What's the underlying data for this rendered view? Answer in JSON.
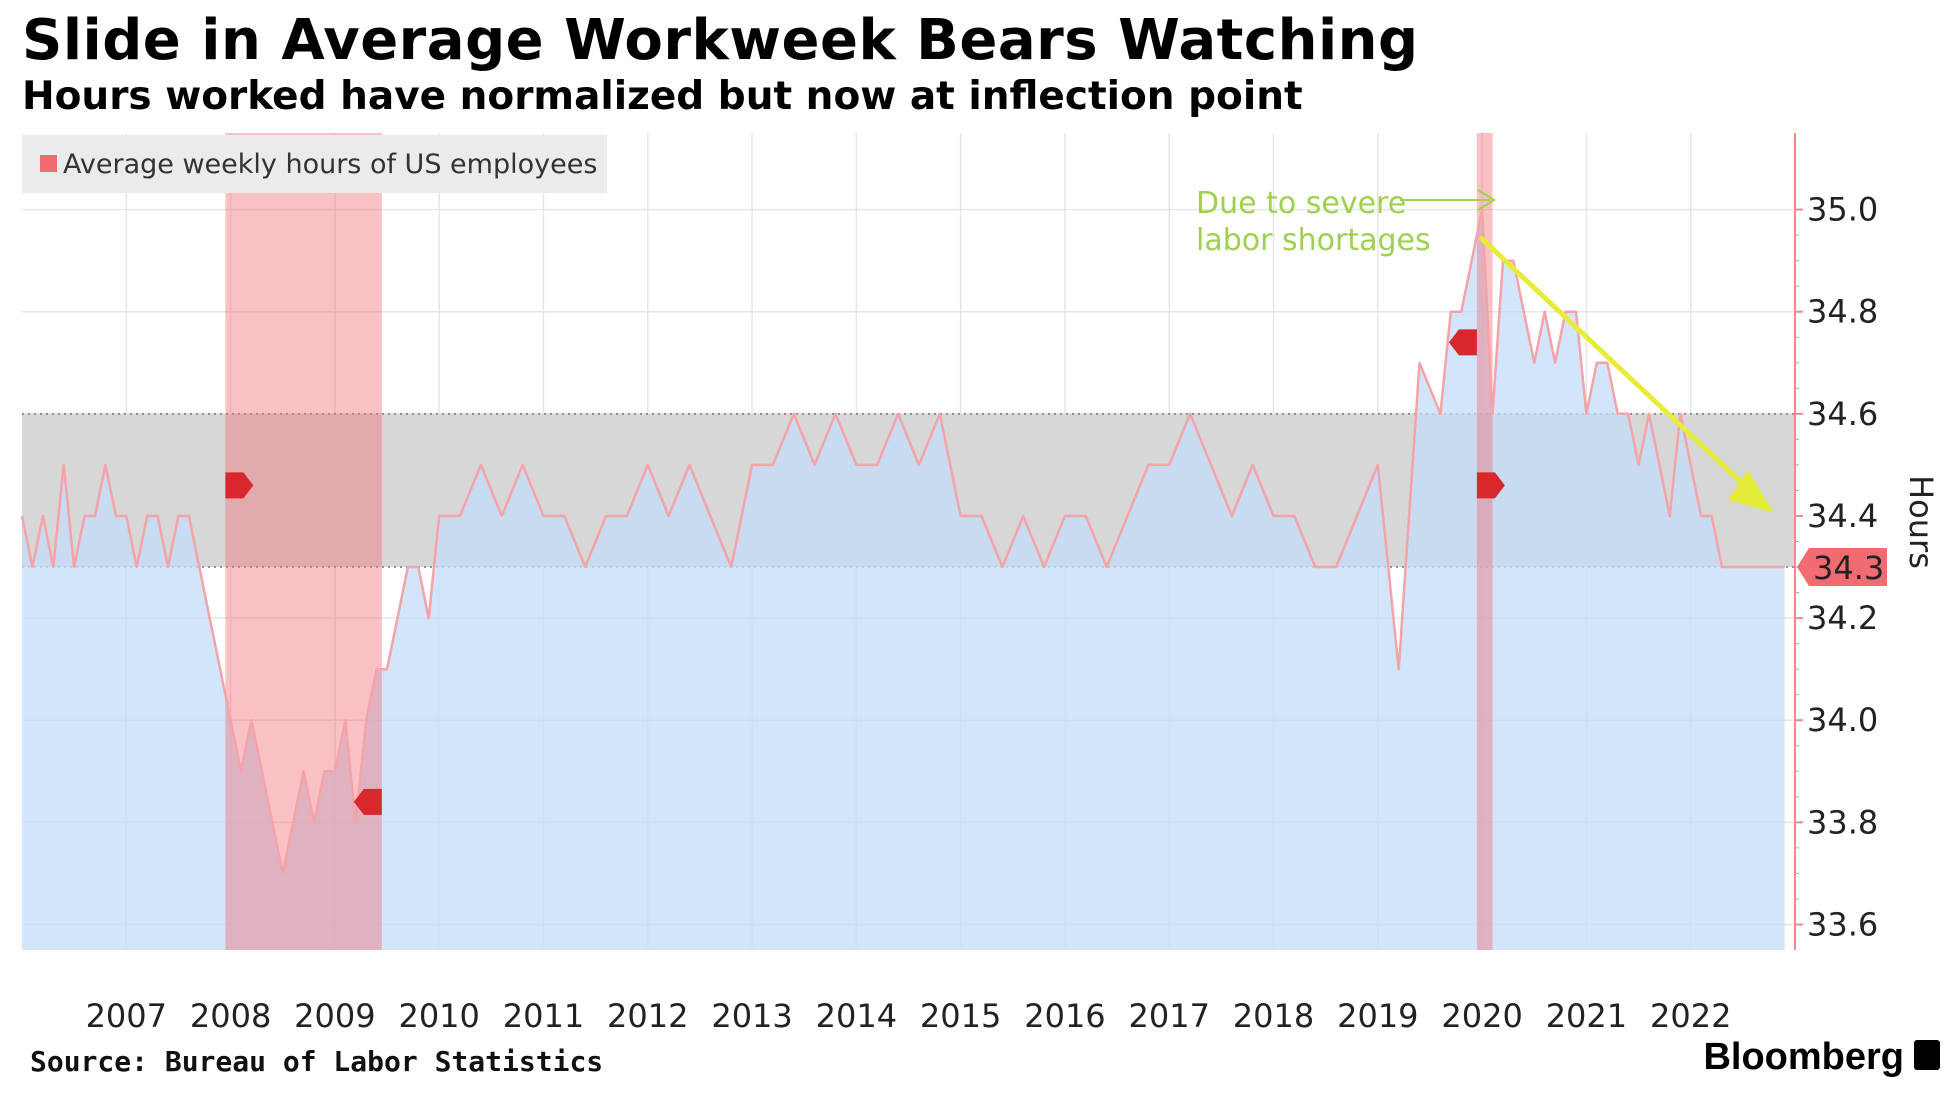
{
  "header": {
    "title": "Slide in Average Workweek Bears Watching",
    "subtitle": "Hours worked have normalized but now at inflection point"
  },
  "footer": {
    "source": "Source: Bureau of Labor Statistics",
    "brand": "Bloomberg"
  },
  "chart_data": {
    "type": "area",
    "title": "Slide in Average Workweek Bears Watching",
    "subtitle": "Hours worked have normalized but now at inflection point",
    "ylabel": "Hours",
    "xlabel": "",
    "ylim": [
      33.55,
      35.15
    ],
    "yticks": [
      33.6,
      33.8,
      34.0,
      34.2,
      34.4,
      34.6,
      34.8,
      35.0
    ],
    "ytick_labels": [
      "33.6",
      "33.8",
      "34.0",
      "34.2",
      "34.4",
      "34.6",
      "34.8",
      "35.0"
    ],
    "xlim": [
      2006.0,
      2023.0
    ],
    "xticks": [
      2007,
      2008,
      2009,
      2010,
      2011,
      2012,
      2013,
      2014,
      2015,
      2016,
      2017,
      2018,
      2019,
      2020,
      2021,
      2022
    ],
    "xtick_labels": [
      "2007",
      "2008",
      "2009",
      "2010",
      "2011",
      "2012",
      "2013",
      "2014",
      "2015",
      "2016",
      "2017",
      "2018",
      "2019",
      "2020",
      "2021",
      "2022"
    ],
    "grid": true,
    "legend": {
      "position": "top-left",
      "entries": [
        "Average weekly hours of US employees"
      ]
    },
    "series": [
      {
        "name": "Average weekly hours of US employees",
        "color": "#f4a3a8",
        "fill": "#c4dcf8",
        "x": [
          2006.0,
          2006.1,
          2006.2,
          2006.3,
          2006.4,
          2006.5,
          2006.6,
          2006.7,
          2006.8,
          2006.9,
          2007.0,
          2007.1,
          2007.2,
          2007.3,
          2007.4,
          2007.5,
          2007.6,
          2007.7,
          2007.8,
          2007.9,
          2008.0,
          2008.1,
          2008.2,
          2008.3,
          2008.4,
          2008.5,
          2008.6,
          2008.7,
          2008.8,
          2008.9,
          2009.0,
          2009.1,
          2009.2,
          2009.3,
          2009.4,
          2009.5,
          2009.6,
          2009.7,
          2009.8,
          2009.9,
          2010.0,
          2010.2,
          2010.4,
          2010.6,
          2010.8,
          2011.0,
          2011.2,
          2011.4,
          2011.6,
          2011.8,
          2012.0,
          2012.2,
          2012.4,
          2012.6,
          2012.8,
          2013.0,
          2013.2,
          2013.4,
          2013.6,
          2013.8,
          2014.0,
          2014.2,
          2014.4,
          2014.6,
          2014.8,
          2015.0,
          2015.2,
          2015.4,
          2015.6,
          2015.8,
          2016.0,
          2016.2,
          2016.4,
          2016.6,
          2016.8,
          2017.0,
          2017.2,
          2017.4,
          2017.6,
          2017.8,
          2018.0,
          2018.2,
          2018.4,
          2018.6,
          2018.8,
          2019.0,
          2019.2,
          2019.4,
          2019.6,
          2019.7,
          2019.8,
          2019.9,
          2020.0,
          2020.1,
          2020.2,
          2020.3,
          2020.4,
          2020.5,
          2020.6,
          2020.7,
          2020.8,
          2020.9,
          2021.0,
          2021.1,
          2021.2,
          2021.3,
          2021.4,
          2021.5,
          2021.6,
          2021.7,
          2021.8,
          2021.9,
          2022.0,
          2022.1,
          2022.2,
          2022.3,
          2022.4,
          2022.5,
          2022.6,
          2022.7,
          2022.8,
          2022.9
        ],
        "y": [
          34.4,
          34.3,
          34.4,
          34.3,
          34.5,
          34.3,
          34.4,
          34.4,
          34.5,
          34.4,
          34.4,
          34.3,
          34.4,
          34.4,
          34.3,
          34.4,
          34.4,
          34.3,
          34.2,
          34.1,
          34.0,
          33.9,
          34.0,
          33.9,
          33.8,
          33.7,
          33.8,
          33.9,
          33.8,
          33.9,
          33.9,
          34.0,
          33.8,
          34.0,
          34.1,
          34.1,
          34.2,
          34.3,
          34.3,
          34.2,
          34.4,
          34.4,
          34.5,
          34.4,
          34.5,
          34.4,
          34.4,
          34.3,
          34.4,
          34.4,
          34.5,
          34.4,
          34.5,
          34.4,
          34.3,
          34.5,
          34.5,
          34.6,
          34.5,
          34.6,
          34.5,
          34.5,
          34.6,
          34.5,
          34.6,
          34.4,
          34.4,
          34.3,
          34.4,
          34.3,
          34.4,
          34.4,
          34.3,
          34.4,
          34.5,
          34.5,
          34.6,
          34.5,
          34.4,
          34.5,
          34.4,
          34.4,
          34.3,
          34.3,
          34.4,
          34.5,
          34.1,
          34.7,
          34.6,
          34.8,
          34.8,
          34.9,
          35.0,
          34.6,
          34.9,
          34.9,
          34.8,
          34.7,
          34.8,
          34.7,
          34.8,
          34.8,
          34.6,
          34.7,
          34.7,
          34.6,
          34.6,
          34.5,
          34.6,
          34.5,
          34.4,
          34.6,
          34.5,
          34.4,
          34.4,
          34.3,
          34.3,
          34.3,
          34.3,
          34.3,
          34.3,
          34.3
        ]
      }
    ],
    "recession_bands": [
      {
        "start": 2007.95,
        "end": 2009.45
      },
      {
        "start": 2019.95,
        "end": 2020.1
      }
    ],
    "normal_range_band": {
      "low": 34.3,
      "high": 34.6
    },
    "last_value_label": "34.3",
    "annotation": {
      "text_line1": "Due to severe",
      "text_line2": "labor shortages",
      "color": "#9fd04f"
    },
    "trend_arrow_color": "#e6ec3a",
    "marker_color": "#d9272e"
  }
}
